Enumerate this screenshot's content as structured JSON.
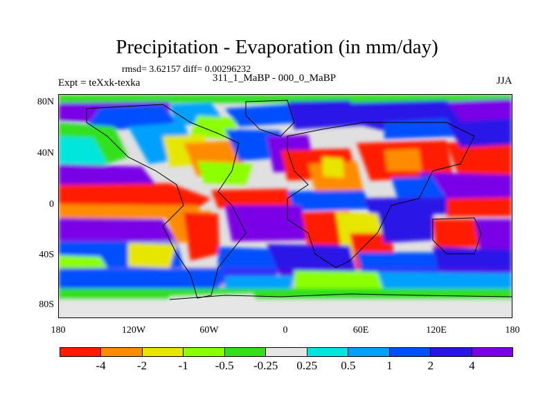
{
  "title": "Precipitation - Evaporation (in mm/day)",
  "stats": "rmsd= 3.62157  diff= 0.00296232",
  "experiment": "Expt = teXxk-texka",
  "cases": "311_1_MaBP - 000_0_MaBP",
  "season": "JJA",
  "axes": {
    "y_ticks": [
      "80N",
      "40N",
      "0",
      "40S",
      "80S"
    ],
    "x_ticks": [
      "180",
      "120W",
      "60W",
      "0",
      "60E",
      "120E",
      "180"
    ]
  },
  "colorbar": {
    "labels": [
      "-4",
      "-2",
      "-1",
      "-0.5",
      "-0.25",
      "0.25",
      "0.5",
      "1",
      "2",
      "4"
    ],
    "colors": [
      "#ff1a00",
      "#ff8c00",
      "#e6e600",
      "#8cff00",
      "#33e01a",
      "#e6e6e6",
      "#00e6dc",
      "#00a0ff",
      "#0050ff",
      "#2a14e6",
      "#7a00e6"
    ]
  },
  "chart_data": {
    "type": "heatmap",
    "title": "Precipitation - Evaporation (in mm/day)",
    "variable": "P-E",
    "units": "mm/day",
    "season": "JJA",
    "xlim": [
      -180,
      180
    ],
    "ylim": [
      -90,
      90
    ],
    "x_ticks": [
      -180,
      -120,
      -60,
      0,
      60,
      120,
      180
    ],
    "y_ticks": [
      80,
      40,
      0,
      -40,
      -80
    ],
    "levels": [
      -4,
      -2,
      -1,
      -0.5,
      -0.25,
      0.25,
      0.5,
      1,
      2,
      4
    ],
    "rmsd": 3.62157,
    "diff": 0.00296232
  }
}
